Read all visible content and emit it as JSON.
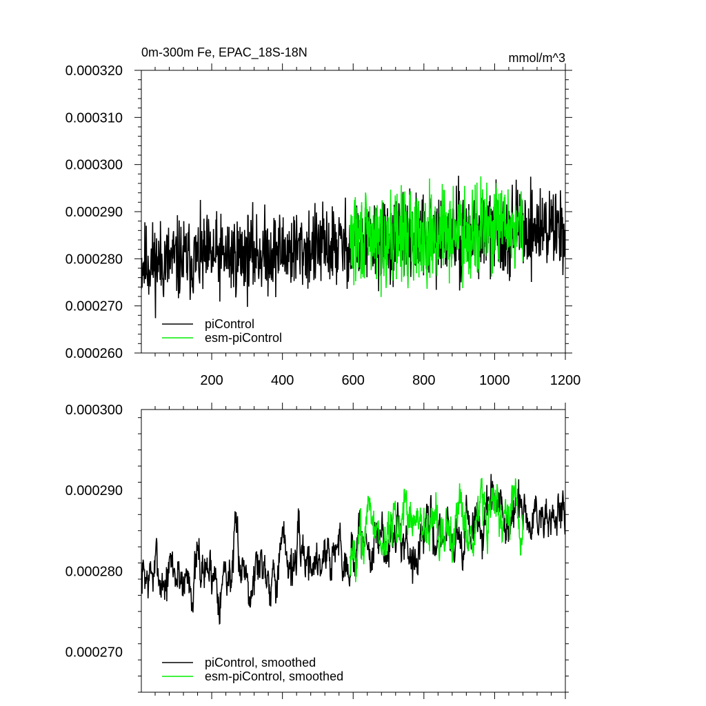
{
  "chart_data": [
    {
      "type": "line",
      "title": "0m-300m Fe, EPAC_18S-18N",
      "units": "mmol/m^3",
      "xlim": [
        1,
        1200
      ],
      "ylim": [
        0.00026,
        0.00032
      ],
      "xticks": [
        200,
        400,
        600,
        800,
        1000,
        1200
      ],
      "xtick_labels": [
        "200",
        "400",
        "600",
        "800",
        "1000",
        "1200"
      ],
      "yticks": [
        0.00026,
        0.00027,
        0.00028,
        0.00029,
        0.0003,
        0.00031,
        0.00032
      ],
      "ytick_labels": [
        "0.000260",
        "0.000270",
        "0.000280",
        "0.000290",
        "0.000300",
        "0.000310",
        "0.000320"
      ],
      "legend_position": "bottom-left",
      "series": [
        {
          "name": "piControl",
          "color": "#000000",
          "x_start": 1,
          "x_end": 1200,
          "mean_start": 0.000279,
          "mean_end": 0.000287,
          "amplitude": 6.5e-06,
          "seed": 11
        },
        {
          "name": "esm-piControl",
          "color": "#00ee00",
          "x_start": 590,
          "x_end": 1080,
          "mean_start": 0.000284,
          "mean_end": 0.000287,
          "amplitude": 7.2e-06,
          "seed": 29
        }
      ]
    },
    {
      "type": "line",
      "title": "",
      "units": "",
      "xlim": [
        1,
        1200
      ],
      "ylim": [
        0.000265,
        0.0003
      ],
      "xticks": [
        200,
        400,
        600,
        800,
        1000,
        1200
      ],
      "xtick_labels": [],
      "yticks": [
        0.00027,
        0.00028,
        0.00029,
        0.0003
      ],
      "ytick_labels": [
        "0.000270",
        "0.000280",
        "0.000290",
        "0.000300"
      ],
      "legend_position": "bottom-left",
      "series": [
        {
          "name": "piControl, smoothed",
          "color": "#000000",
          "x_start": 1,
          "x_end": 1200,
          "mean_start": 0.000279,
          "mean_end": 0.000287,
          "amplitude": 4.5e-06,
          "seed": 7
        },
        {
          "name": "esm-piControl, smoothed",
          "color": "#00ee00",
          "x_start": 590,
          "x_end": 1080,
          "mean_start": 0.000284,
          "mean_end": 0.000288,
          "amplitude": 4.5e-06,
          "seed": 43
        }
      ]
    }
  ]
}
